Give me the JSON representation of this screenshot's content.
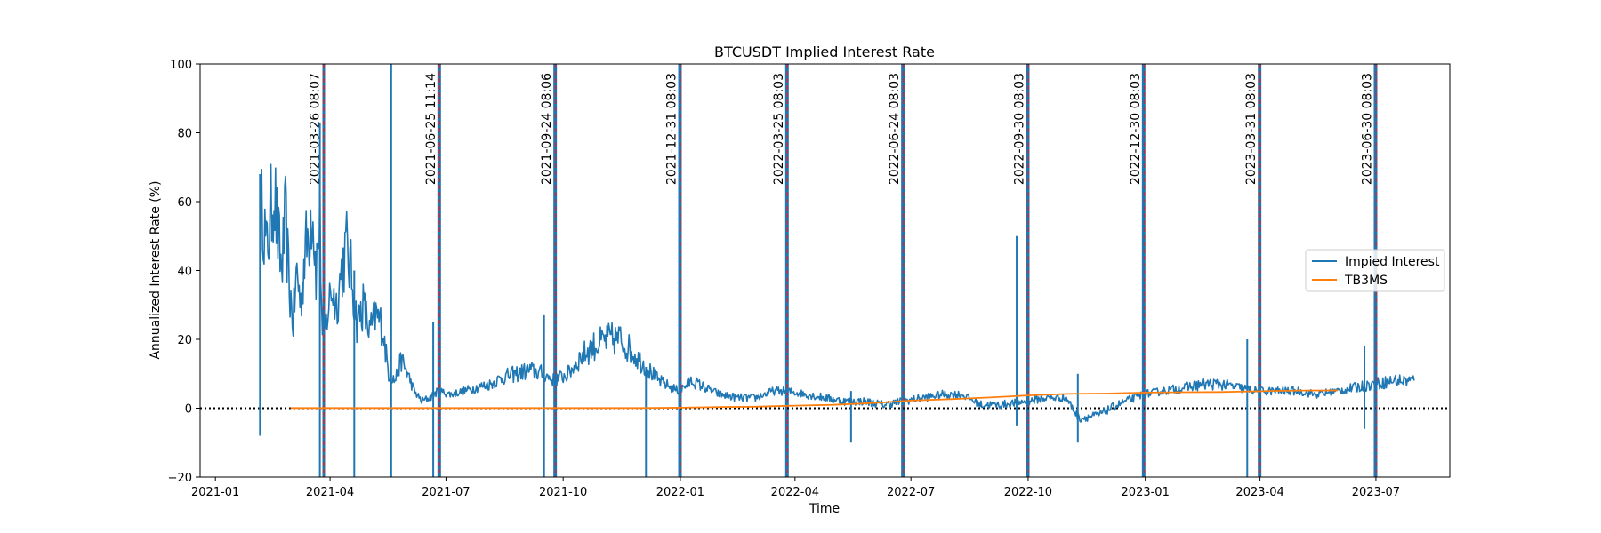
{
  "chart_data": {
    "type": "line",
    "title": "BTCUSDT Implied Interest Rate",
    "xlabel": "Time",
    "ylabel": "Annualized Interest Rate (%)",
    "xlim": [
      "2020-12-20",
      "2023-08-28"
    ],
    "ylim": [
      -20,
      100
    ],
    "x_ticks": [
      "2021-01",
      "2021-04",
      "2021-07",
      "2021-10",
      "2022-01",
      "2022-04",
      "2022-07",
      "2022-10",
      "2023-01",
      "2023-04",
      "2023-07"
    ],
    "y_ticks": [
      -20,
      0,
      20,
      40,
      60,
      80,
      100
    ],
    "grid": false,
    "legend": "center-right",
    "zero_line": {
      "y": 0,
      "style": "dotted",
      "color": "#000000"
    },
    "series": [
      {
        "name": "Impied Interest",
        "color": "#1f77b4",
        "points": [
          [
            "2021-02-05",
            50
          ],
          [
            "2021-02-07",
            60
          ],
          [
            "2021-02-10",
            45
          ],
          [
            "2021-02-13",
            55
          ],
          [
            "2021-02-16",
            65
          ],
          [
            "2021-02-19",
            50
          ],
          [
            "2021-02-22",
            40
          ],
          [
            "2021-02-25",
            55
          ],
          [
            "2021-02-28",
            35
          ],
          [
            "2021-03-03",
            25
          ],
          [
            "2021-03-06",
            40
          ],
          [
            "2021-03-09",
            30
          ],
          [
            "2021-03-12",
            45
          ],
          [
            "2021-03-15",
            50
          ],
          [
            "2021-03-18",
            60
          ],
          [
            "2021-03-21",
            40
          ],
          [
            "2021-03-24",
            55
          ],
          [
            "2021-03-26",
            20
          ],
          [
            "2021-03-29",
            25
          ],
          [
            "2021-04-02",
            35
          ],
          [
            "2021-04-06",
            30
          ],
          [
            "2021-04-10",
            40
          ],
          [
            "2021-04-14",
            47
          ],
          [
            "2021-04-18",
            38
          ],
          [
            "2021-04-22",
            25
          ],
          [
            "2021-04-27",
            30
          ],
          [
            "2021-05-02",
            22
          ],
          [
            "2021-05-07",
            27
          ],
          [
            "2021-05-12",
            24
          ],
          [
            "2021-05-17",
            10
          ],
          [
            "2021-05-22",
            8
          ],
          [
            "2021-05-27",
            14
          ],
          [
            "2021-06-01",
            10
          ],
          [
            "2021-06-06",
            5
          ],
          [
            "2021-06-12",
            2
          ],
          [
            "2021-06-18",
            3
          ],
          [
            "2021-06-25",
            5
          ],
          [
            "2021-07-05",
            4
          ],
          [
            "2021-07-15",
            5
          ],
          [
            "2021-07-25",
            6
          ],
          [
            "2021-08-05",
            7
          ],
          [
            "2021-08-15",
            9
          ],
          [
            "2021-08-25",
            10
          ],
          [
            "2021-09-05",
            11
          ],
          [
            "2021-09-15",
            10
          ],
          [
            "2021-09-24",
            8
          ],
          [
            "2021-10-05",
            10
          ],
          [
            "2021-10-15",
            15
          ],
          [
            "2021-10-25",
            18
          ],
          [
            "2021-11-05",
            20
          ],
          [
            "2021-11-15",
            20
          ],
          [
            "2021-11-25",
            16
          ],
          [
            "2021-12-05",
            12
          ],
          [
            "2021-12-15",
            8
          ],
          [
            "2021-12-25",
            6
          ],
          [
            "2021-12-31",
            5
          ],
          [
            "2022-01-10",
            8
          ],
          [
            "2022-01-20",
            6
          ],
          [
            "2022-02-01",
            4
          ],
          [
            "2022-02-15",
            3
          ],
          [
            "2022-03-01",
            3
          ],
          [
            "2022-03-15",
            5
          ],
          [
            "2022-03-25",
            5
          ],
          [
            "2022-04-10",
            4
          ],
          [
            "2022-04-25",
            3
          ],
          [
            "2022-05-10",
            2
          ],
          [
            "2022-05-25",
            2
          ],
          [
            "2022-06-10",
            1
          ],
          [
            "2022-06-24",
            2
          ],
          [
            "2022-07-10",
            3
          ],
          [
            "2022-07-25",
            4
          ],
          [
            "2022-08-10",
            4
          ],
          [
            "2022-08-25",
            1
          ],
          [
            "2022-09-10",
            1
          ],
          [
            "2022-09-30",
            2
          ],
          [
            "2022-10-15",
            3
          ],
          [
            "2022-10-31",
            3
          ],
          [
            "2022-11-10",
            -3
          ],
          [
            "2022-11-25",
            -2
          ],
          [
            "2022-12-10",
            1
          ],
          [
            "2022-12-30",
            4
          ],
          [
            "2023-01-15",
            5
          ],
          [
            "2023-02-01",
            6
          ],
          [
            "2023-02-15",
            7
          ],
          [
            "2023-03-01",
            7
          ],
          [
            "2023-03-15",
            6
          ],
          [
            "2023-03-31",
            5
          ],
          [
            "2023-04-15",
            5
          ],
          [
            "2023-05-01",
            5
          ],
          [
            "2023-05-15",
            4
          ],
          [
            "2023-06-01",
            5
          ],
          [
            "2023-06-15",
            6
          ],
          [
            "2023-06-30",
            7
          ],
          [
            "2023-07-15",
            8
          ],
          [
            "2023-07-31",
            8
          ]
        ],
        "spikes": [
          [
            "2021-02-05",
            -8,
            68
          ],
          [
            "2021-03-24",
            -20,
            83
          ],
          [
            "2021-04-20",
            -20,
            40
          ],
          [
            "2021-05-19",
            -20,
            100
          ],
          [
            "2021-06-21",
            -20,
            25
          ],
          [
            "2021-06-25",
            -20,
            100
          ],
          [
            "2021-09-16",
            -20,
            27
          ],
          [
            "2021-09-24",
            -20,
            100
          ],
          [
            "2021-12-05",
            -20,
            12
          ],
          [
            "2021-12-31",
            -20,
            100
          ],
          [
            "2022-03-25",
            -20,
            100
          ],
          [
            "2022-05-15",
            -10,
            5
          ],
          [
            "2022-06-24",
            -20,
            100
          ],
          [
            "2022-09-22",
            -5,
            50
          ],
          [
            "2022-09-30",
            -20,
            100
          ],
          [
            "2022-11-09",
            -10,
            10
          ],
          [
            "2022-12-30",
            -20,
            100
          ],
          [
            "2023-03-22",
            -20,
            20
          ],
          [
            "2023-03-31",
            -20,
            100
          ],
          [
            "2023-06-22",
            -6,
            18
          ],
          [
            "2023-06-30",
            -20,
            100
          ]
        ]
      },
      {
        "name": "TB3MS",
        "color": "#ff7f0e",
        "points": [
          [
            "2021-03-01",
            0.05
          ],
          [
            "2021-06-01",
            0.04
          ],
          [
            "2021-09-01",
            0.04
          ],
          [
            "2021-12-01",
            0.06
          ],
          [
            "2022-01-01",
            0.15
          ],
          [
            "2022-02-01",
            0.33
          ],
          [
            "2022-03-01",
            0.44
          ],
          [
            "2022-04-01",
            0.76
          ],
          [
            "2022-05-01",
            0.98
          ],
          [
            "2022-06-01",
            1.49
          ],
          [
            "2022-07-01",
            2.23
          ],
          [
            "2022-08-01",
            2.63
          ],
          [
            "2022-09-01",
            3.13
          ],
          [
            "2022-10-01",
            3.72
          ],
          [
            "2022-11-01",
            4.15
          ],
          [
            "2022-12-01",
            4.25
          ],
          [
            "2023-01-01",
            4.54
          ],
          [
            "2023-02-01",
            4.65
          ],
          [
            "2023-03-01",
            4.69
          ],
          [
            "2023-04-01",
            4.92
          ],
          [
            "2023-05-01",
            5.14
          ],
          [
            "2023-06-01",
            5.16
          ]
        ]
      }
    ],
    "expiry_lines": {
      "color": "#d62728",
      "style": "dashed",
      "labels": [
        "2021-03-26 08:07",
        "2021-06-25 11:14",
        "2021-09-24 08:06",
        "2021-12-31 08:03",
        "2022-03-25 08:03",
        "2022-06-24 08:03",
        "2022-09-30 08:03",
        "2022-12-30 08:03",
        "2023-03-31 08:03",
        "2023-06-30 08:03"
      ]
    }
  }
}
